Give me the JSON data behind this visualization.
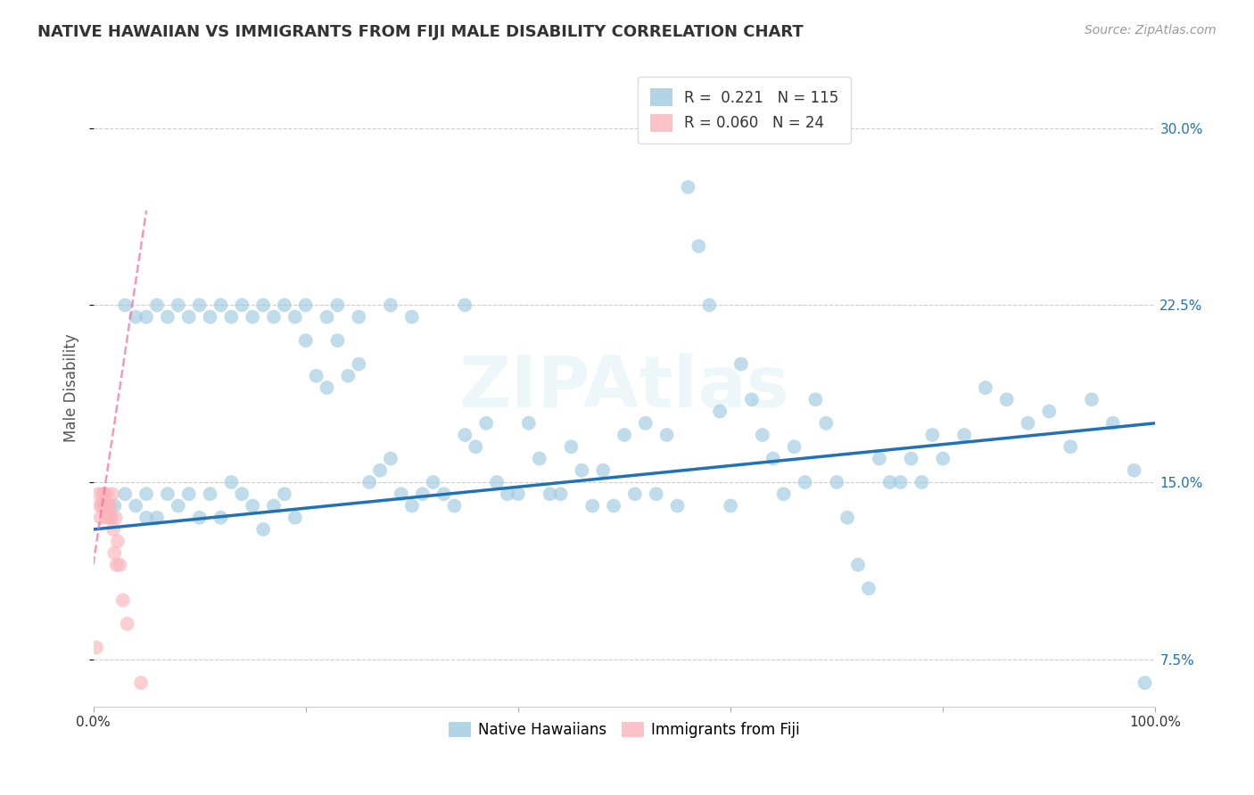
{
  "title": "NATIVE HAWAIIAN VS IMMIGRANTS FROM FIJI MALE DISABILITY CORRELATION CHART",
  "source": "Source: ZipAtlas.com",
  "xlabel": "",
  "ylabel": "Male Disability",
  "xlim": [
    0,
    100
  ],
  "ylim": [
    5.5,
    32.5
  ],
  "xticks": [
    0,
    20,
    40,
    60,
    80,
    100
  ],
  "xticklabels": [
    "0.0%",
    "",
    "",
    "",
    "",
    "100.0%"
  ],
  "yticks": [
    7.5,
    15.0,
    22.5,
    30.0
  ],
  "yticklabels": [
    "7.5%",
    "15.0%",
    "22.5%",
    "30.0%"
  ],
  "r_blue": 0.221,
  "n_blue": 115,
  "r_pink": 0.06,
  "n_pink": 24,
  "blue_color": "#9ecae1",
  "pink_color": "#fbb4b9",
  "blue_line_color": "#2171b5",
  "pink_line_color": "#f768a1",
  "watermark": "ZIPAtlas",
  "legend_labels": [
    "Native Hawaiians",
    "Immigrants from Fiji"
  ],
  "blue_scatter_x": [
    1,
    2,
    3,
    4,
    5,
    5,
    6,
    7,
    8,
    9,
    10,
    11,
    12,
    13,
    14,
    15,
    16,
    17,
    18,
    19,
    20,
    21,
    22,
    23,
    24,
    25,
    26,
    27,
    28,
    29,
    30,
    31,
    32,
    33,
    34,
    35,
    36,
    37,
    38,
    39,
    40,
    41,
    42,
    43,
    44,
    45,
    46,
    47,
    48,
    49,
    50,
    51,
    52,
    53,
    54,
    55,
    56,
    57,
    58,
    59,
    60,
    61,
    62,
    63,
    64,
    65,
    66,
    67,
    68,
    69,
    70,
    71,
    72,
    73,
    74,
    75,
    76,
    77,
    78,
    79,
    80,
    82,
    84,
    86,
    88,
    90,
    92,
    94,
    96,
    98,
    99,
    3,
    4,
    5,
    6,
    7,
    8,
    9,
    10,
    11,
    12,
    13,
    14,
    15,
    16,
    17,
    18,
    19,
    20,
    22,
    23,
    25,
    28,
    30,
    35
  ],
  "blue_scatter_y": [
    14.0,
    14.0,
    14.5,
    14.0,
    13.5,
    14.5,
    13.5,
    14.5,
    14.0,
    14.5,
    13.5,
    14.5,
    13.5,
    15.0,
    14.5,
    14.0,
    13.0,
    14.0,
    14.5,
    13.5,
    21.0,
    19.5,
    19.0,
    21.0,
    19.5,
    20.0,
    15.0,
    15.5,
    16.0,
    14.5,
    14.0,
    14.5,
    15.0,
    14.5,
    14.0,
    17.0,
    16.5,
    17.5,
    15.0,
    14.5,
    14.5,
    17.5,
    16.0,
    14.5,
    14.5,
    16.5,
    15.5,
    14.0,
    15.5,
    14.0,
    17.0,
    14.5,
    17.5,
    14.5,
    17.0,
    14.0,
    27.5,
    25.0,
    22.5,
    18.0,
    14.0,
    20.0,
    18.5,
    17.0,
    16.0,
    14.5,
    16.5,
    15.0,
    18.5,
    17.5,
    15.0,
    13.5,
    11.5,
    10.5,
    16.0,
    15.0,
    15.0,
    16.0,
    15.0,
    17.0,
    16.0,
    17.0,
    19.0,
    18.5,
    17.5,
    18.0,
    16.5,
    18.5,
    17.5,
    15.5,
    6.5,
    22.5,
    22.0,
    22.0,
    22.5,
    22.0,
    22.5,
    22.0,
    22.5,
    22.0,
    22.5,
    22.0,
    22.5,
    22.0,
    22.5,
    22.0,
    22.5,
    22.0,
    22.5,
    22.0,
    22.5,
    22.0,
    22.5,
    22.0,
    22.5
  ],
  "pink_scatter_x": [
    0.3,
    0.5,
    0.6,
    0.7,
    0.8,
    0.9,
    1.0,
    1.1,
    1.2,
    1.3,
    1.4,
    1.5,
    1.6,
    1.7,
    1.8,
    1.9,
    2.0,
    2.1,
    2.2,
    2.3,
    2.5,
    2.8,
    3.2,
    4.5
  ],
  "pink_scatter_y": [
    8.0,
    14.5,
    14.0,
    13.5,
    14.0,
    14.5,
    14.5,
    14.0,
    13.5,
    14.5,
    14.0,
    13.5,
    14.0,
    13.5,
    14.5,
    13.0,
    12.0,
    13.5,
    11.5,
    12.5,
    11.5,
    10.0,
    9.0,
    6.5
  ],
  "blue_trendline_x": [
    0,
    100
  ],
  "blue_trendline_y": [
    13.0,
    17.5
  ],
  "pink_trendline_x": [
    0,
    5
  ],
  "pink_trendline_y": [
    11.5,
    26.5
  ]
}
